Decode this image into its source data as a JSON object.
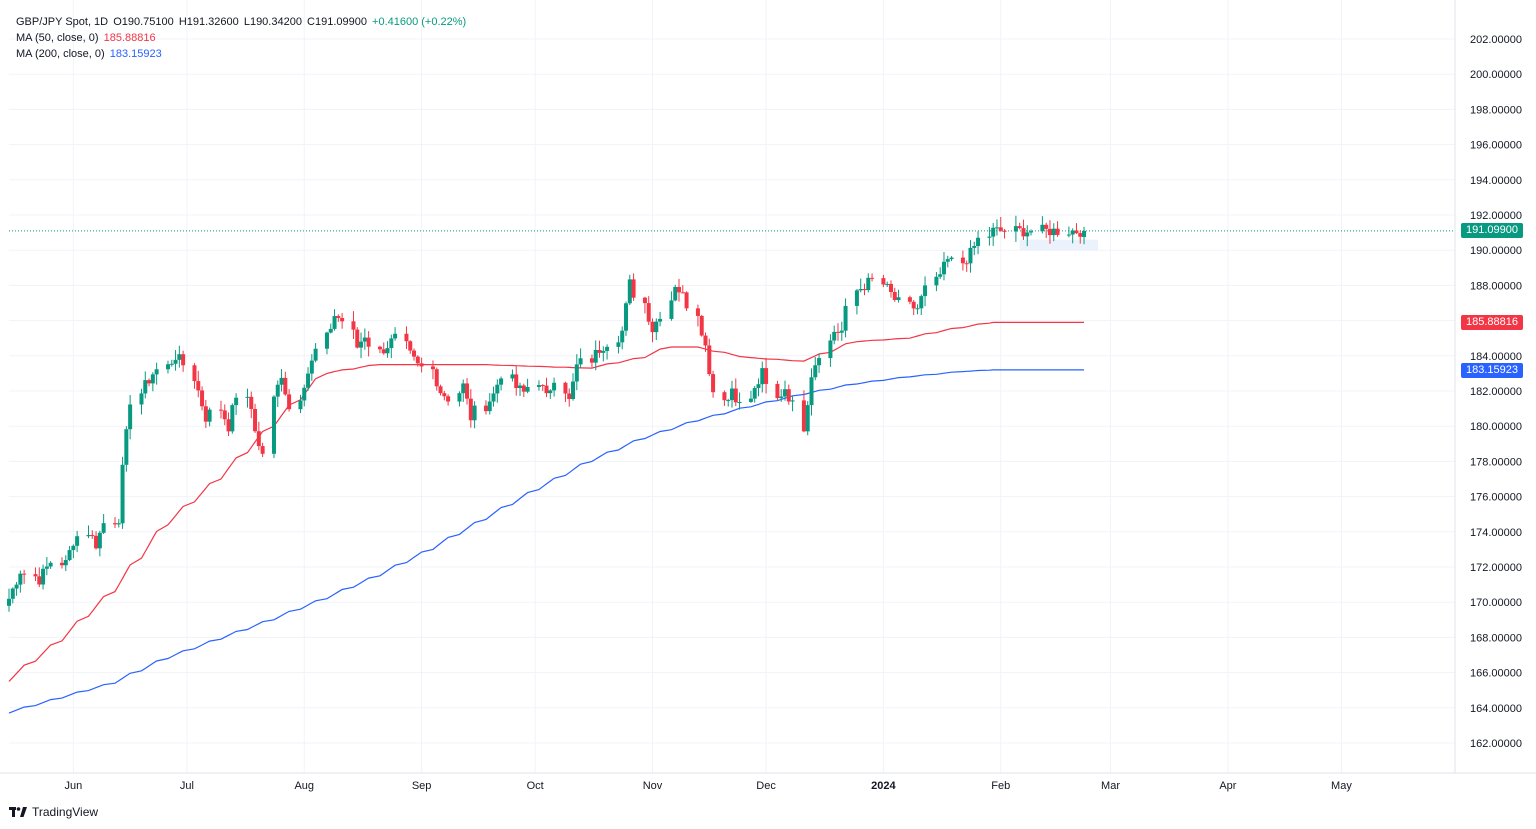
{
  "legend": {
    "symbol": "GBP/JPY Spot, 1D",
    "ohlc": {
      "o": "O190.75100",
      "h": "H191.32600",
      "l": "L190.34200",
      "c": "C191.09900",
      "chg": "+0.41600 (+0.22%)"
    },
    "ma50": {
      "label": "MA (50, close, 0)",
      "value": "185.88816"
    },
    "ma200": {
      "label": "MA (200, close, 0)",
      "value": "183.15923"
    }
  },
  "price_tags": {
    "last": "191.09900",
    "ma50": "185.88816",
    "ma200": "183.15923"
  },
  "brand": {
    "name": "TradingView",
    "icon": "tradingview-logo-icon"
  },
  "colors": {
    "up": "#089981",
    "down": "#f23645",
    "ma50": "#f23645",
    "ma200": "#2962ff",
    "grid": "#f0f3fa"
  },
  "chart_data": {
    "type": "candlestick",
    "symbol": "GBP/JPY Spot",
    "interval": "1D",
    "date_range": [
      "2023-05-15",
      "2024-02-23"
    ],
    "x_axis_range": [
      "2023-05-15",
      "2024-05-31"
    ],
    "x_ticks": [
      {
        "label": "Jun",
        "date": "2023-06-01"
      },
      {
        "label": "Jul",
        "date": "2023-07-01"
      },
      {
        "label": "Aug",
        "date": "2023-08-01"
      },
      {
        "label": "Sep",
        "date": "2023-09-01"
      },
      {
        "label": "Oct",
        "date": "2023-10-01"
      },
      {
        "label": "Nov",
        "date": "2023-11-01"
      },
      {
        "label": "Dec",
        "date": "2023-12-01"
      },
      {
        "label": "2024",
        "date": "2024-01-01"
      },
      {
        "label": "Feb",
        "date": "2024-02-01"
      },
      {
        "label": "Mar",
        "date": "2024-03-01"
      },
      {
        "label": "Apr",
        "date": "2024-04-01"
      },
      {
        "label": "May",
        "date": "2024-05-01"
      }
    ],
    "ylim": [
      160,
      204
    ],
    "y_ticks": [
      "162.00000",
      "164.00000",
      "166.00000",
      "168.00000",
      "170.00000",
      "172.00000",
      "174.00000",
      "176.00000",
      "178.00000",
      "180.00000",
      "182.00000",
      "184.00000",
      "186.00000",
      "188.00000",
      "190.00000",
      "192.00000",
      "194.00000",
      "196.00000",
      "198.00000",
      "200.00000",
      "202.00000"
    ],
    "last_price": 191.099,
    "close_anchors": [
      [
        0,
        170.2
      ],
      [
        3,
        171.8
      ],
      [
        6,
        171.3
      ],
      [
        9,
        172.3
      ],
      [
        11,
        172.2
      ],
      [
        13,
        173.5
      ],
      [
        15,
        174.0
      ],
      [
        17,
        173.3
      ],
      [
        19,
        174.5
      ],
      [
        21,
        174.8
      ],
      [
        22,
        177.5
      ],
      [
        24,
        181.5
      ],
      [
        26,
        182.3
      ],
      [
        28,
        183.0
      ],
      [
        30,
        183.4
      ],
      [
        32,
        184.0
      ],
      [
        34,
        183.5
      ],
      [
        36,
        182.0
      ],
      [
        38,
        180.5
      ],
      [
        40,
        181.0
      ],
      [
        42,
        180.0
      ],
      [
        44,
        181.8
      ],
      [
        46,
        181.0
      ],
      [
        48,
        178.8
      ],
      [
        49,
        178.5
      ],
      [
        50,
        181.5
      ],
      [
        52,
        183.0
      ],
      [
        54,
        181.0
      ],
      [
        56,
        182.5
      ],
      [
        58,
        183.6
      ],
      [
        60,
        185.0
      ],
      [
        62,
        186.3
      ],
      [
        64,
        186.0
      ],
      [
        66,
        184.5
      ],
      [
        68,
        185.2
      ],
      [
        70,
        184.2
      ],
      [
        72,
        184.6
      ],
      [
        74,
        185.0
      ],
      [
        76,
        184.0
      ],
      [
        78,
        183.4
      ],
      [
        80,
        183.2
      ],
      [
        82,
        182.0
      ],
      [
        84,
        181.6
      ],
      [
        86,
        182.3
      ],
      [
        88,
        180.5
      ],
      [
        90,
        181.2
      ],
      [
        92,
        181.8
      ],
      [
        94,
        183.0
      ],
      [
        96,
        182.2
      ],
      [
        98,
        181.9
      ],
      [
        100,
        182.6
      ],
      [
        102,
        181.6
      ],
      [
        104,
        182.8
      ],
      [
        106,
        181.4
      ],
      [
        108,
        183.4
      ],
      [
        110,
        183.8
      ],
      [
        112,
        184.4
      ],
      [
        114,
        184.8
      ],
      [
        116,
        185.4
      ],
      [
        118,
        188.1
      ],
      [
        120,
        187.0
      ],
      [
        122,
        185.5
      ],
      [
        124,
        186.4
      ],
      [
        126,
        188.1
      ],
      [
        128,
        187.4
      ],
      [
        130,
        186.5
      ],
      [
        132,
        184.5
      ],
      [
        134,
        182.0
      ],
      [
        136,
        181.5
      ],
      [
        137,
        182.2
      ],
      [
        139,
        181.2
      ],
      [
        141,
        182.0
      ],
      [
        143,
        183.0
      ],
      [
        145,
        181.5
      ],
      [
        147,
        182.2
      ],
      [
        149,
        181.2
      ],
      [
        150,
        180.0
      ],
      [
        152,
        183.0
      ],
      [
        154,
        184.2
      ],
      [
        156,
        185.4
      ],
      [
        158,
        185.4
      ],
      [
        160,
        187.7
      ],
      [
        162,
        188.0
      ],
      [
        164,
        188.3
      ],
      [
        166,
        187.8
      ],
      [
        168,
        187.2
      ],
      [
        170,
        186.8
      ],
      [
        172,
        186.7
      ],
      [
        174,
        187.8
      ],
      [
        176,
        188.6
      ],
      [
        178,
        189.4
      ],
      [
        180,
        189.3
      ],
      [
        182,
        189.8
      ],
      [
        184,
        190.6
      ],
      [
        186,
        191.1
      ]
    ],
    "ma50": [
      [
        0,
        165.5
      ],
      [
        10,
        167.8
      ],
      [
        20,
        170.6
      ],
      [
        30,
        174.4
      ],
      [
        40,
        177.0
      ],
      [
        50,
        180.0
      ],
      [
        60,
        183.0
      ],
      [
        70,
        183.5
      ],
      [
        80,
        183.5
      ],
      [
        90,
        183.5
      ],
      [
        100,
        183.4
      ],
      [
        110,
        183.3
      ],
      [
        120,
        183.9
      ],
      [
        125,
        184.5
      ],
      [
        130,
        184.5
      ],
      [
        140,
        183.9
      ],
      [
        150,
        183.7
      ],
      [
        155,
        184.2
      ],
      [
        160,
        184.8
      ],
      [
        170,
        185.0
      ],
      [
        178,
        185.5
      ],
      [
        186,
        185.9
      ]
    ],
    "ma200": [
      [
        0,
        163.7
      ],
      [
        20,
        165.4
      ],
      [
        30,
        166.8
      ],
      [
        40,
        167.9
      ],
      [
        50,
        169.0
      ],
      [
        60,
        170.2
      ],
      [
        70,
        171.5
      ],
      [
        80,
        173.0
      ],
      [
        90,
        174.7
      ],
      [
        100,
        176.4
      ],
      [
        110,
        178.0
      ],
      [
        120,
        179.3
      ],
      [
        130,
        180.3
      ],
      [
        140,
        181.1
      ],
      [
        150,
        181.8
      ],
      [
        160,
        182.4
      ],
      [
        170,
        182.8
      ],
      [
        180,
        183.1
      ],
      [
        186,
        183.2
      ]
    ]
  }
}
